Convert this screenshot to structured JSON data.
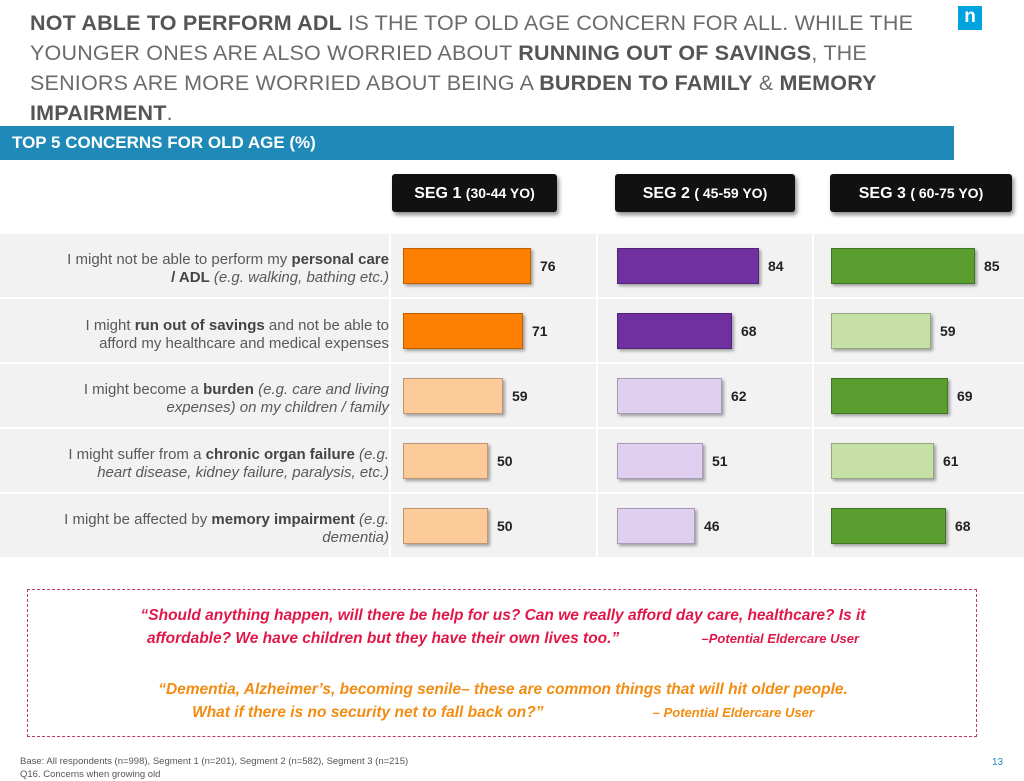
{
  "headline": {
    "p1": "NOT ABLE TO PERFORM ADL",
    "p2": " IS THE TOP OLD AGE CONCERN FOR ALL. WHILE THE YOUNGER ONES ARE ALSO WORRIED ABOUT ",
    "p3": "RUNNING OUT OF SAVINGS",
    "p4": ", THE SENIORS ARE MORE WORRIED ABOUT BEING A ",
    "p5": "BURDEN TO FAMILY",
    "p6": " & ",
    "p7": "MEMORY IMPAIRMENT",
    "p8": "."
  },
  "logo": "n",
  "section_title": "TOP 5 CONCERNS FOR OLD AGE (%)",
  "segments": [
    {
      "label": "SEG 1",
      "sub": "(30-44 YO)"
    },
    {
      "label": "SEG 2",
      "sub": "( 45-59 YO)"
    },
    {
      "label": "SEG 3",
      "sub": "( 60-75 YO)"
    }
  ],
  "rows": [
    {
      "a": "I might not be able to perform my ",
      "b": "personal care",
      "c": "",
      "d": "/ ADL",
      "e": " (e.g. walking, bathing etc.)"
    },
    {
      "a": "I might ",
      "b": "run out of savings",
      "c": " and not be able to",
      "d": "",
      "e": "afford my healthcare and medical expenses"
    },
    {
      "a": "I might become a ",
      "b": "burden",
      "c": " (e.g. care and living",
      "d": "",
      "e": "expenses) on my children / family"
    },
    {
      "a": "I might suffer from a ",
      "b": "chronic organ failure",
      "c": " (e.g.",
      "d": "",
      "e": "heart disease, kidney failure, paralysis, etc.)"
    },
    {
      "a": "I might be affected by ",
      "b": "memory impairment",
      "c": " (e.g.",
      "d": "",
      "e": "dementia)"
    }
  ],
  "chart_data": {
    "type": "bar",
    "title": "TOP 5 CONCERNS FOR OLD AGE (%)",
    "categories": [
      "I might not be able to perform my personal care / ADL (e.g. walking, bathing etc.)",
      "I might run out of savings and not be able to afford my healthcare and medical expenses",
      "I might become a burden (e.g. care and living expenses) on my children / family",
      "I might suffer from a chronic organ failure (e.g. heart disease, kidney failure, paralysis, etc.)",
      "I might be affected by memory impairment (e.g. dementia)"
    ],
    "series": [
      {
        "name": "SEG 1 (30-44 YO)",
        "values": [
          76,
          71,
          59,
          50,
          50
        ],
        "colors": [
          "#ff7f00",
          "#ff7f00",
          "#fdcb9a",
          "#fdcb9a",
          "#fdcb9a"
        ]
      },
      {
        "name": "SEG 2 ( 45-59 YO)",
        "values": [
          84,
          68,
          62,
          51,
          46
        ],
        "colors": [
          "#7030a0",
          "#7030a0",
          "#e1cff2",
          "#e1cff2",
          "#e1cff2"
        ]
      },
      {
        "name": "SEG 3 ( 60-75 YO)",
        "values": [
          85,
          59,
          69,
          61,
          68
        ],
        "colors": [
          "#5a9e2f",
          "#c6e0a6",
          "#5a9e2f",
          "#c6e0a6",
          "#5a9e2f"
        ]
      }
    ],
    "ylim": [
      0,
      100
    ]
  },
  "quotes": [
    {
      "line1": "“Should anything happen, will there be help for us? Can we really afford day care, healthcare? Is it",
      "line2": "affordable? We have children but they have their own lives too.”",
      "attribution": "–Potential Eldercare User"
    },
    {
      "line1": "“Dementia, Alzheimer’s, becoming senile– these are common things that will hit older people.",
      "line2": "What if there is no security net to fall back on?”",
      "attribution": "– Potential Eldercare User"
    }
  ],
  "footer": {
    "base": "Base: All respondents (n=998), Segment 1 (n=201), Segment 2 (n=582), Segment 3 (n=215)",
    "question": "Q16. Concerns when growing old"
  },
  "page_number": "13"
}
